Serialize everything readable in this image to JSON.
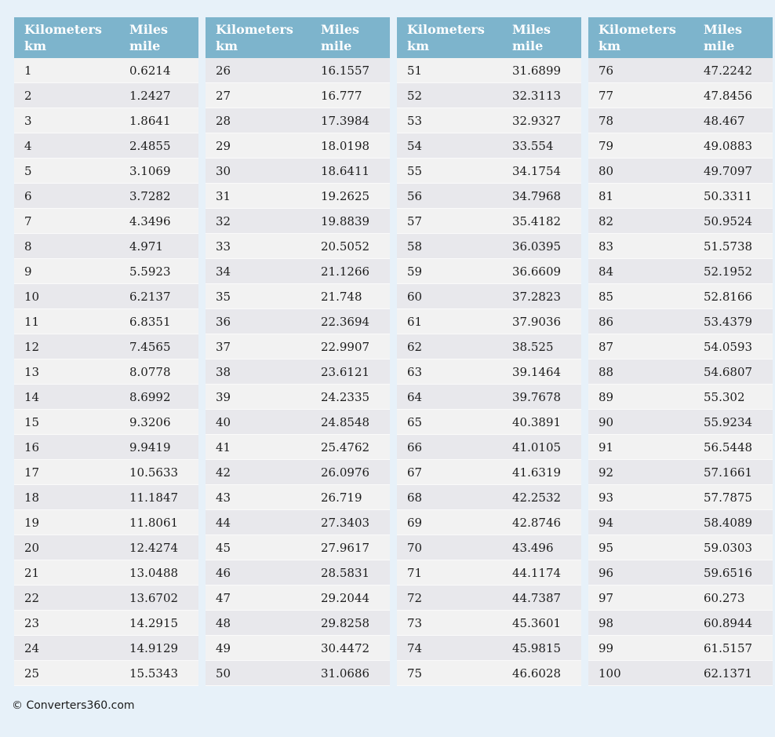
{
  "page": {
    "footer_text": "© Converters360.com"
  },
  "colors": {
    "page_background": "#e7f1f9",
    "header_background": "#7db4cc",
    "header_text": "#ffffff",
    "row_light": "#f2f2f2",
    "row_dark": "#e8e8ec",
    "cell_text": "#1c1c1c"
  },
  "header": {
    "col1_line1": "Kilometers",
    "col1_line2": "km",
    "col2_line1": "Miles",
    "col2_line2": "mile"
  },
  "chart_data": {
    "type": "table",
    "title": "Kilometers to Miles conversion table",
    "columns": [
      "Kilometers km",
      "Miles mile"
    ],
    "groups": [
      {
        "rows": [
          {
            "km": 1,
            "mi": "0.6214"
          },
          {
            "km": 2,
            "mi": "1.2427"
          },
          {
            "km": 3,
            "mi": "1.8641"
          },
          {
            "km": 4,
            "mi": "2.4855"
          },
          {
            "km": 5,
            "mi": "3.1069"
          },
          {
            "km": 6,
            "mi": "3.7282"
          },
          {
            "km": 7,
            "mi": "4.3496"
          },
          {
            "km": 8,
            "mi": "4.971"
          },
          {
            "km": 9,
            "mi": "5.5923"
          },
          {
            "km": 10,
            "mi": "6.2137"
          },
          {
            "km": 11,
            "mi": "6.8351"
          },
          {
            "km": 12,
            "mi": "7.4565"
          },
          {
            "km": 13,
            "mi": "8.0778"
          },
          {
            "km": 14,
            "mi": "8.6992"
          },
          {
            "km": 15,
            "mi": "9.3206"
          },
          {
            "km": 16,
            "mi": "9.9419"
          },
          {
            "km": 17,
            "mi": "10.5633"
          },
          {
            "km": 18,
            "mi": "11.1847"
          },
          {
            "km": 19,
            "mi": "11.8061"
          },
          {
            "km": 20,
            "mi": "12.4274"
          },
          {
            "km": 21,
            "mi": "13.0488"
          },
          {
            "km": 22,
            "mi": "13.6702"
          },
          {
            "km": 23,
            "mi": "14.2915"
          },
          {
            "km": 24,
            "mi": "14.9129"
          },
          {
            "km": 25,
            "mi": "15.5343"
          }
        ]
      },
      {
        "rows": [
          {
            "km": 26,
            "mi": "16.1557"
          },
          {
            "km": 27,
            "mi": "16.777"
          },
          {
            "km": 28,
            "mi": "17.3984"
          },
          {
            "km": 29,
            "mi": "18.0198"
          },
          {
            "km": 30,
            "mi": "18.6411"
          },
          {
            "km": 31,
            "mi": "19.2625"
          },
          {
            "km": 32,
            "mi": "19.8839"
          },
          {
            "km": 33,
            "mi": "20.5052"
          },
          {
            "km": 34,
            "mi": "21.1266"
          },
          {
            "km": 35,
            "mi": "21.748"
          },
          {
            "km": 36,
            "mi": "22.3694"
          },
          {
            "km": 37,
            "mi": "22.9907"
          },
          {
            "km": 38,
            "mi": "23.6121"
          },
          {
            "km": 39,
            "mi": "24.2335"
          },
          {
            "km": 40,
            "mi": "24.8548"
          },
          {
            "km": 41,
            "mi": "25.4762"
          },
          {
            "km": 42,
            "mi": "26.0976"
          },
          {
            "km": 43,
            "mi": "26.719"
          },
          {
            "km": 44,
            "mi": "27.3403"
          },
          {
            "km": 45,
            "mi": "27.9617"
          },
          {
            "km": 46,
            "mi": "28.5831"
          },
          {
            "km": 47,
            "mi": "29.2044"
          },
          {
            "km": 48,
            "mi": "29.8258"
          },
          {
            "km": 49,
            "mi": "30.4472"
          },
          {
            "km": 50,
            "mi": "31.0686"
          }
        ]
      },
      {
        "rows": [
          {
            "km": 51,
            "mi": "31.6899"
          },
          {
            "km": 52,
            "mi": "32.3113"
          },
          {
            "km": 53,
            "mi": "32.9327"
          },
          {
            "km": 54,
            "mi": "33.554"
          },
          {
            "km": 55,
            "mi": "34.1754"
          },
          {
            "km": 56,
            "mi": "34.7968"
          },
          {
            "km": 57,
            "mi": "35.4182"
          },
          {
            "km": 58,
            "mi": "36.0395"
          },
          {
            "km": 59,
            "mi": "36.6609"
          },
          {
            "km": 60,
            "mi": "37.2823"
          },
          {
            "km": 61,
            "mi": "37.9036"
          },
          {
            "km": 62,
            "mi": "38.525"
          },
          {
            "km": 63,
            "mi": "39.1464"
          },
          {
            "km": 64,
            "mi": "39.7678"
          },
          {
            "km": 65,
            "mi": "40.3891"
          },
          {
            "km": 66,
            "mi": "41.0105"
          },
          {
            "km": 67,
            "mi": "41.6319"
          },
          {
            "km": 68,
            "mi": "42.2532"
          },
          {
            "km": 69,
            "mi": "42.8746"
          },
          {
            "km": 70,
            "mi": "43.496"
          },
          {
            "km": 71,
            "mi": "44.1174"
          },
          {
            "km": 72,
            "mi": "44.7387"
          },
          {
            "km": 73,
            "mi": "45.3601"
          },
          {
            "km": 74,
            "mi": "45.9815"
          },
          {
            "km": 75,
            "mi": "46.6028"
          }
        ]
      },
      {
        "rows": [
          {
            "km": 76,
            "mi": "47.2242"
          },
          {
            "km": 77,
            "mi": "47.8456"
          },
          {
            "km": 78,
            "mi": "48.467"
          },
          {
            "km": 79,
            "mi": "49.0883"
          },
          {
            "km": 80,
            "mi": "49.7097"
          },
          {
            "km": 81,
            "mi": "50.3311"
          },
          {
            "km": 82,
            "mi": "50.9524"
          },
          {
            "km": 83,
            "mi": "51.5738"
          },
          {
            "km": 84,
            "mi": "52.1952"
          },
          {
            "km": 85,
            "mi": "52.8166"
          },
          {
            "km": 86,
            "mi": "53.4379"
          },
          {
            "km": 87,
            "mi": "54.0593"
          },
          {
            "km": 88,
            "mi": "54.6807"
          },
          {
            "km": 89,
            "mi": "55.302"
          },
          {
            "km": 90,
            "mi": "55.9234"
          },
          {
            "km": 91,
            "mi": "56.5448"
          },
          {
            "km": 92,
            "mi": "57.1661"
          },
          {
            "km": 93,
            "mi": "57.7875"
          },
          {
            "km": 94,
            "mi": "58.4089"
          },
          {
            "km": 95,
            "mi": "59.0303"
          },
          {
            "km": 96,
            "mi": "59.6516"
          },
          {
            "km": 97,
            "mi": "60.273"
          },
          {
            "km": 98,
            "mi": "60.8944"
          },
          {
            "km": 99,
            "mi": "61.5157"
          },
          {
            "km": 100,
            "mi": "62.1371"
          }
        ]
      }
    ]
  }
}
